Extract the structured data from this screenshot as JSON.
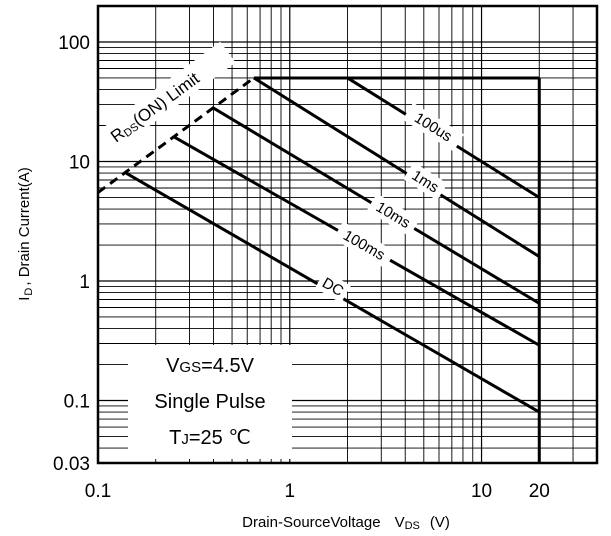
{
  "chart_data": {
    "type": "line",
    "title": "",
    "x_scale": "log",
    "y_scale": "log",
    "xlim": [
      0.1,
      40
    ],
    "ylim": [
      0.03,
      200
    ],
    "grid": true,
    "xticks": [
      {
        "value": 0.1,
        "label": "0.1"
      },
      {
        "value": 1,
        "label": "1"
      },
      {
        "value": 10,
        "label": "10"
      },
      {
        "value": 20,
        "label": "20"
      }
    ],
    "yticks": [
      {
        "value": 100,
        "label": "100"
      },
      {
        "value": 10,
        "label": "10"
      },
      {
        "value": 1,
        "label": "1"
      },
      {
        "value": 0.1,
        "label": "0.1"
      },
      {
        "value": 0.03,
        "label": "0.03"
      }
    ],
    "xlabel": {
      "main": "Drain-SourceVoltage",
      "sym": "V",
      "sub": "DS",
      "unit": "(V)"
    },
    "ylabel": {
      "sym": "I",
      "sub": "D",
      "rest": ", Drain Current(A)"
    },
    "limit_line": {
      "label_pre": "R",
      "label_sub": "DS",
      "label_post": "(ON) Limit",
      "x": [
        0.1,
        0.65
      ],
      "y": [
        5.5,
        50
      ]
    },
    "current_limit": {
      "x": [
        0.65,
        20
      ],
      "y": [
        50,
        50
      ]
    },
    "voltage_limit": {
      "x": [
        20,
        20
      ],
      "y": [
        0.03,
        50
      ]
    },
    "series": [
      {
        "name": "100us",
        "x": [
          2.0,
          20
        ],
        "y": [
          50,
          5.0
        ],
        "label_at": [
          5.5,
          18.5
        ]
      },
      {
        "name": "1ms",
        "x": [
          0.65,
          20
        ],
        "y": [
          50,
          1.6
        ],
        "label_at": [
          5.0,
          6.5
        ]
      },
      {
        "name": "10ms",
        "x": [
          0.4,
          20
        ],
        "y": [
          28,
          0.65
        ],
        "label_at": [
          3.4,
          3.4
        ]
      },
      {
        "name": "100ms",
        "x": [
          0.25,
          20
        ],
        "y": [
          16,
          0.29
        ],
        "label_at": [
          2.4,
          1.9
        ]
      },
      {
        "name": "DC",
        "x": [
          0.14,
          20
        ],
        "y": [
          8,
          0.08
        ],
        "label_at": [
          1.65,
          0.85
        ]
      }
    ],
    "annotation": {
      "line1_pre": "V",
      "line1_sub": "GS",
      "line1_post": "=4.5V",
      "line2": "Single Pulse",
      "line3_pre": "T",
      "line3_sub": "J",
      "line3_post": "=25 ℃"
    }
  }
}
